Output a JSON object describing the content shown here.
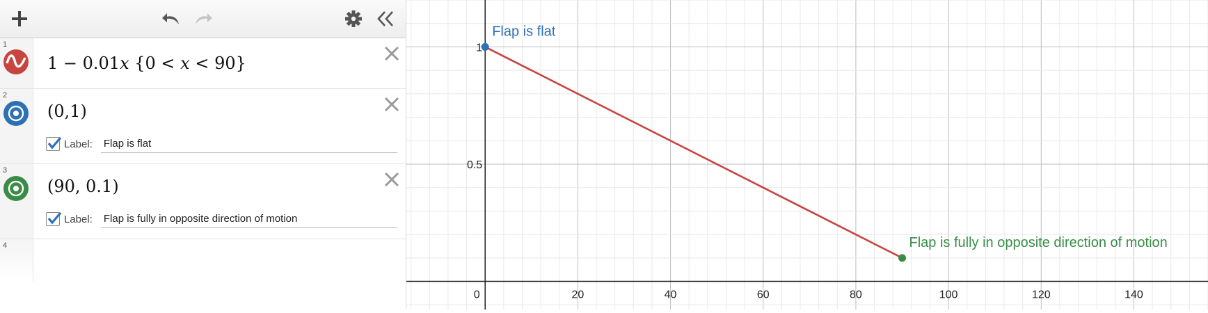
{
  "expressions": [
    {
      "index": "1",
      "latex_parts": [
        "1 − 0.01",
        "x",
        " {0 < ",
        "x",
        " < 90}"
      ],
      "color": "#c74440",
      "icon": "graph-wave-icon"
    },
    {
      "index": "2",
      "text": "(0,1)",
      "color": "#2d70b3",
      "icon": "point-icon",
      "label_caption": "Label:",
      "label_value": "Flap is flat",
      "label_checked": true
    },
    {
      "index": "3",
      "text": "(90, 0.1)",
      "color": "#388c46",
      "icon": "point-icon",
      "label_caption": "Label:",
      "label_value": "Flap is fully in opposite direction of motion",
      "label_checked": true
    },
    {
      "index": "4"
    }
  ],
  "toolbar": {
    "add_icon": "plus-icon",
    "undo_icon": "undo-icon",
    "redo_icon": "redo-icon",
    "settings_icon": "gear-icon",
    "collapse_icon": "double-chevron-left-icon"
  },
  "graph": {
    "x_ticks": [
      "0",
      "20",
      "40",
      "60",
      "80",
      "100",
      "120",
      "140"
    ],
    "y_ticks": [
      "0.5",
      "1"
    ],
    "xlim": [
      -17,
      156
    ],
    "ylim": [
      -0.12,
      1.2
    ],
    "point_labels": [
      "Flap is flat",
      "Flap is fully in opposite direction of motion"
    ]
  },
  "chart_data": {
    "type": "line",
    "series": [
      {
        "name": "",
        "x": [
          0,
          90
        ],
        "y": [
          1,
          0.1
        ],
        "color": "#c74440"
      }
    ],
    "points": [
      {
        "x": 0,
        "y": 1,
        "label": "Flap is flat",
        "color": "#2d70b3"
      },
      {
        "x": 90,
        "y": 0.1,
        "label": "Flap is fully in opposite direction of motion",
        "color": "#388c46"
      }
    ],
    "xlim": [
      -17,
      156
    ],
    "ylim": [
      -0.12,
      1.2
    ],
    "grid": true
  }
}
